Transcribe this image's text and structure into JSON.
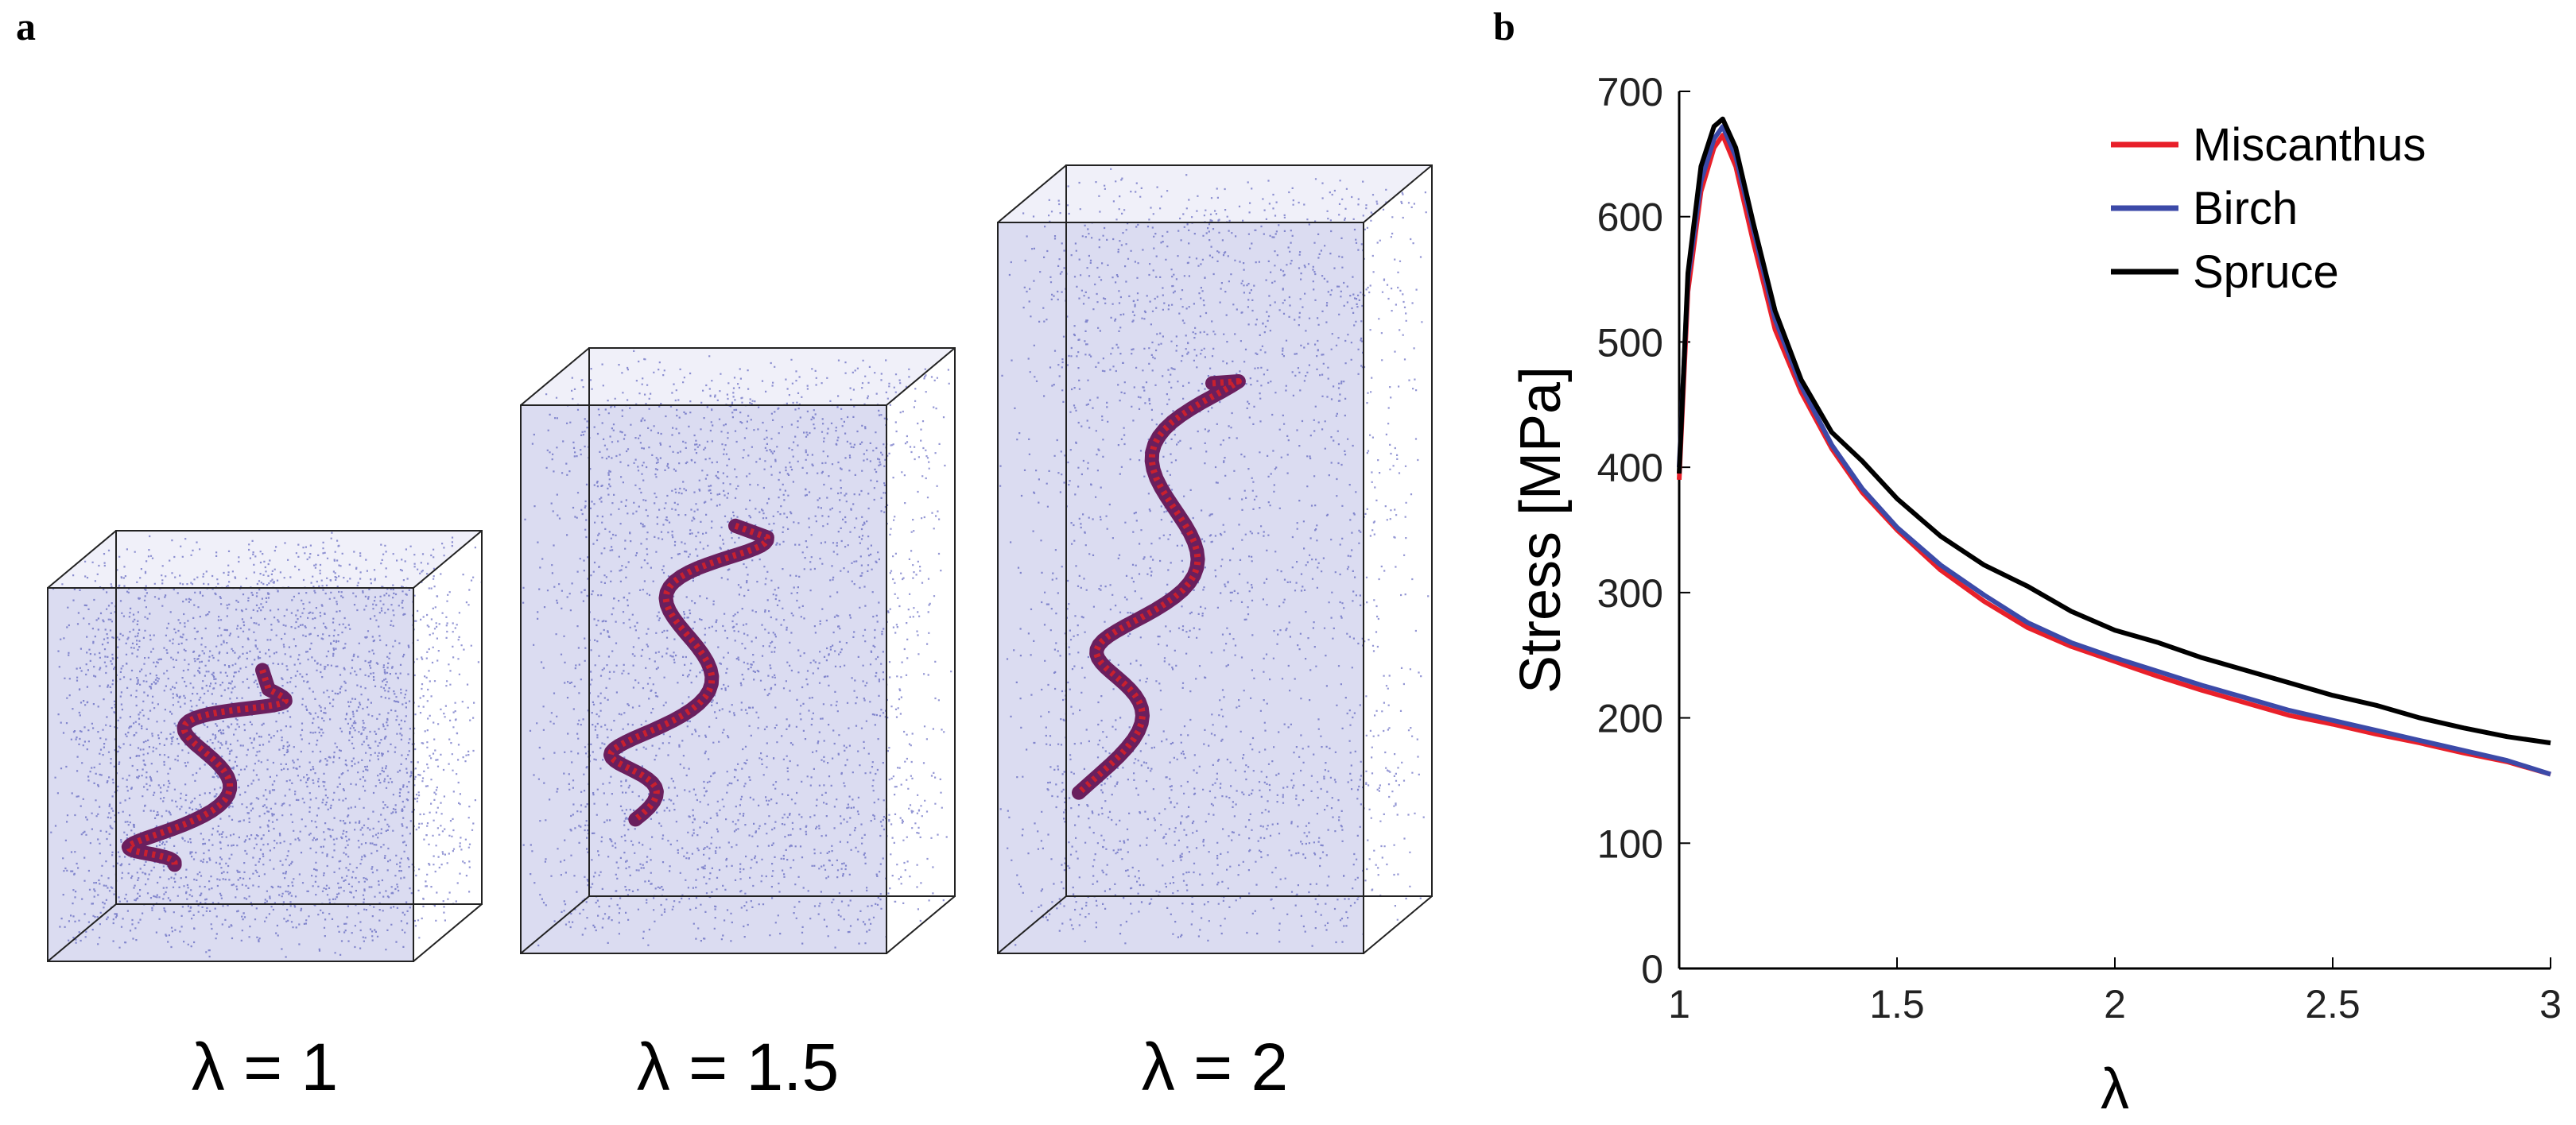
{
  "panels": {
    "a": {
      "letter": "a",
      "boxes": [
        {
          "label": "λ = 1",
          "stretch": 1
        },
        {
          "label": "λ = 1.5",
          "stretch": 1.5
        },
        {
          "label": "λ = 2",
          "stretch": 2
        }
      ]
    },
    "b": {
      "letter": "b"
    }
  },
  "colors": {
    "miscanthus": "#e8202a",
    "birch": "#3c4aa8",
    "spruce": "#000000",
    "cloud": "#3a3fb0",
    "chain": "#c8202e"
  },
  "chart_data": {
    "type": "line",
    "xlabel": "λ",
    "ylabel": "Stress [MPa]",
    "xlim": [
      1,
      3
    ],
    "ylim": [
      0,
      700
    ],
    "xticks": [
      1,
      1.5,
      2,
      2.5,
      3
    ],
    "xtick_labels": [
      "1",
      "1.5",
      "2",
      "2.5",
      "3"
    ],
    "yticks": [
      0,
      100,
      200,
      300,
      400,
      500,
      600,
      700
    ],
    "ytick_labels": [
      "0",
      "100",
      "200",
      "300",
      "400",
      "500",
      "600",
      "700"
    ],
    "legend_position": "top-right",
    "series": [
      {
        "name": "Miscanthus",
        "color": "#e8202a",
        "x": [
          1.0,
          1.02,
          1.05,
          1.08,
          1.1,
          1.13,
          1.17,
          1.22,
          1.28,
          1.35,
          1.42,
          1.5,
          1.6,
          1.7,
          1.8,
          1.9,
          2.0,
          2.1,
          2.2,
          2.3,
          2.4,
          2.5,
          2.6,
          2.7,
          2.8,
          2.9,
          3.0
        ],
        "y": [
          390,
          540,
          620,
          655,
          665,
          640,
          580,
          510,
          460,
          415,
          380,
          350,
          318,
          293,
          272,
          257,
          245,
          233,
          222,
          212,
          202,
          195,
          187,
          180,
          172,
          165,
          155
        ]
      },
      {
        "name": "Birch",
        "color": "#3c4aa8",
        "x": [
          1.0,
          1.02,
          1.05,
          1.08,
          1.1,
          1.13,
          1.17,
          1.22,
          1.28,
          1.35,
          1.42,
          1.5,
          1.6,
          1.7,
          1.8,
          1.9,
          2.0,
          2.1,
          2.2,
          2.3,
          2.4,
          2.5,
          2.6,
          2.7,
          2.8,
          2.9,
          3.0
        ],
        "y": [
          400,
          550,
          628,
          662,
          672,
          648,
          590,
          518,
          465,
          418,
          383,
          352,
          322,
          298,
          276,
          260,
          248,
          237,
          226,
          216,
          206,
          198,
          190,
          182,
          174,
          166,
          155
        ]
      },
      {
        "name": "Spruce",
        "color": "#000000",
        "x": [
          1.0,
          1.02,
          1.05,
          1.08,
          1.1,
          1.13,
          1.17,
          1.22,
          1.28,
          1.35,
          1.42,
          1.5,
          1.6,
          1.7,
          1.8,
          1.9,
          2.0,
          2.1,
          2.2,
          2.3,
          2.4,
          2.5,
          2.6,
          2.7,
          2.8,
          2.9,
          3.0
        ],
        "y": [
          395,
          555,
          640,
          672,
          678,
          655,
          595,
          525,
          470,
          428,
          405,
          375,
          345,
          322,
          305,
          285,
          270,
          260,
          248,
          238,
          228,
          218,
          210,
          200,
          192,
          185,
          180
        ]
      }
    ]
  }
}
